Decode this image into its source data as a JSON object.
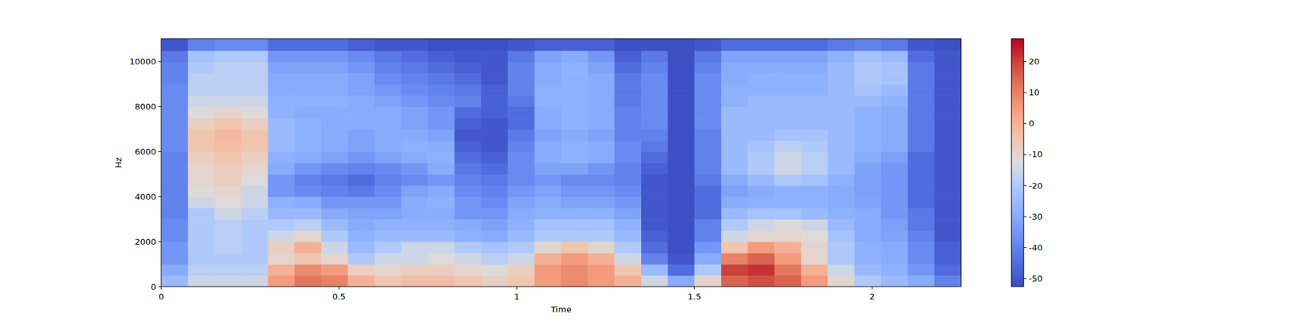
{
  "chart_data": {
    "type": "heatmap",
    "xlabel": "Time",
    "ylabel": "Hz",
    "xlim": [
      0,
      2.25
    ],
    "xticks": [
      0,
      0.5,
      1,
      1.5,
      2
    ],
    "ylim": [
      0,
      11025
    ],
    "yticks": [
      0,
      2000,
      4000,
      6000,
      8000,
      10000
    ],
    "x_edges": [
      0,
      0.075,
      0.15,
      0.225,
      0.3,
      0.375,
      0.45,
      0.525,
      0.6,
      0.675,
      0.75,
      0.825,
      0.9,
      0.975,
      1.05,
      1.125,
      1.2,
      1.275,
      1.35,
      1.425,
      1.5,
      1.575,
      1.65,
      1.725,
      1.8,
      1.875,
      1.95,
      2.025,
      2.1,
      2.175,
      2.25
    ],
    "y_edges": [
      0,
      500,
      1000,
      1500,
      2000,
      2500,
      3000,
      3500,
      4000,
      4500,
      5000,
      5500,
      6000,
      6500,
      7000,
      7500,
      8000,
      8500,
      9000,
      9500,
      10000,
      10500,
      11025
    ],
    "cells": [
      [
        -25,
        -15,
        -15,
        -15,
        5,
        12,
        10,
        0,
        -5,
        -3,
        -3,
        -5,
        -8,
        -5,
        5,
        8,
        5,
        0,
        -15,
        -30,
        -10,
        15,
        18,
        15,
        5,
        -10,
        -20,
        -25,
        -30,
        -40
      ],
      [
        -30,
        -18,
        -18,
        -18,
        0,
        8,
        5,
        -8,
        -10,
        -8,
        -8,
        -10,
        -12,
        -8,
        5,
        8,
        5,
        -5,
        -25,
        -45,
        -20,
        20,
        22,
        12,
        0,
        -15,
        -25,
        -28,
        -35,
        -45
      ],
      [
        -35,
        -20,
        -20,
        -20,
        -10,
        -5,
        -10,
        -20,
        -15,
        -15,
        -12,
        -15,
        -18,
        -15,
        0,
        5,
        0,
        -15,
        -40,
        -50,
        -30,
        10,
        15,
        5,
        -10,
        -20,
        -28,
        -30,
        -38,
        -48
      ],
      [
        -35,
        -20,
        -18,
        -20,
        -8,
        0,
        -15,
        -25,
        -20,
        -15,
        -15,
        -20,
        -22,
        -20,
        -10,
        -5,
        -10,
        -20,
        -45,
        -52,
        -35,
        -5,
        5,
        0,
        -10,
        -20,
        -28,
        -30,
        -38,
        -48
      ],
      [
        -38,
        -20,
        -18,
        -20,
        -15,
        -10,
        -20,
        -28,
        -25,
        -25,
        -25,
        -28,
        -30,
        -25,
        -20,
        -20,
        -20,
        -25,
        -48,
        -52,
        -40,
        -15,
        -10,
        -10,
        -12,
        -22,
        -30,
        -32,
        -40,
        -50
      ],
      [
        -38,
        -20,
        -18,
        -20,
        -20,
        -18,
        -25,
        -30,
        -28,
        -28,
        -28,
        -30,
        -32,
        -28,
        -22,
        -22,
        -22,
        -28,
        -50,
        -52,
        -40,
        -20,
        -15,
        -12,
        -15,
        -25,
        -30,
        -33,
        -42,
        -50
      ],
      [
        -40,
        -20,
        -15,
        -18,
        -25,
        -25,
        -30,
        -32,
        -32,
        -30,
        -30,
        -35,
        -35,
        -30,
        -28,
        -28,
        -28,
        -32,
        -50,
        -52,
        -45,
        -25,
        -22,
        -22,
        -25,
        -28,
        -30,
        -35,
        -42,
        -50
      ],
      [
        -40,
        -15,
        -12,
        -15,
        -28,
        -30,
        -35,
        -35,
        -35,
        -30,
        -28,
        -35,
        -38,
        -32,
        -30,
        -32,
        -32,
        -35,
        -50,
        -52,
        -45,
        -30,
        -28,
        -28,
        -28,
        -30,
        -32,
        -35,
        -45,
        -50
      ],
      [
        -40,
        -12,
        -10,
        -15,
        -35,
        -38,
        -40,
        -42,
        -38,
        -32,
        -30,
        -38,
        -40,
        -35,
        -32,
        -35,
        -35,
        -38,
        -50,
        -52,
        -45,
        -32,
        -30,
        -28,
        -28,
        -30,
        -33,
        -35,
        -45,
        -50
      ],
      [
        -40,
        -10,
        -8,
        -12,
        -35,
        -40,
        -42,
        -45,
        -40,
        -38,
        -35,
        -40,
        -42,
        -38,
        -35,
        -38,
        -38,
        -40,
        -50,
        -52,
        -42,
        -30,
        -25,
        -20,
        -22,
        -28,
        -33,
        -35,
        -45,
        -50
      ],
      [
        -40,
        -10,
        -8,
        -10,
        -30,
        -35,
        -38,
        -40,
        -38,
        -35,
        -30,
        -42,
        -45,
        -38,
        -32,
        -32,
        -35,
        -40,
        -48,
        -52,
        -40,
        -25,
        -20,
        -15,
        -18,
        -25,
        -32,
        -35,
        -45,
        -50
      ],
      [
        -40,
        -8,
        -5,
        -8,
        -28,
        -30,
        -32,
        -35,
        -32,
        -30,
        -28,
        -45,
        -48,
        -38,
        -30,
        -28,
        -30,
        -38,
        -45,
        -52,
        -40,
        -25,
        -20,
        -15,
        -18,
        -25,
        -30,
        -33,
        -45,
        -50
      ],
      [
        -38,
        -5,
        -3,
        -5,
        -25,
        -28,
        -30,
        -32,
        -30,
        -28,
        -30,
        -48,
        -50,
        -40,
        -30,
        -28,
        -30,
        -38,
        -42,
        -52,
        -40,
        -25,
        -22,
        -18,
        -20,
        -25,
        -28,
        -30,
        -42,
        -50
      ],
      [
        -38,
        -5,
        -2,
        -5,
        -25,
        -28,
        -30,
        -32,
        -30,
        -30,
        -32,
        -50,
        -50,
        -42,
        -32,
        -30,
        -32,
        -40,
        -40,
        -52,
        -40,
        -25,
        -25,
        -22,
        -22,
        -25,
        -28,
        -30,
        -42,
        -50
      ],
      [
        -38,
        -8,
        -5,
        -8,
        -25,
        -28,
        -30,
        -30,
        -30,
        -32,
        -35,
        -48,
        -50,
        -45,
        -30,
        -28,
        -30,
        -40,
        -38,
        -52,
        -38,
        -25,
        -25,
        -25,
        -25,
        -25,
        -28,
        -30,
        -42,
        -50
      ],
      [
        -38,
        -12,
        -10,
        -12,
        -28,
        -30,
        -30,
        -30,
        -30,
        -32,
        -35,
        -45,
        -48,
        -45,
        -30,
        -28,
        -30,
        -40,
        -38,
        -52,
        -38,
        -25,
        -25,
        -25,
        -25,
        -25,
        -28,
        -30,
        -42,
        -50
      ],
      [
        -38,
        -15,
        -15,
        -15,
        -28,
        -28,
        -28,
        -30,
        -32,
        -35,
        -38,
        -40,
        -48,
        -42,
        -28,
        -28,
        -30,
        -42,
        -38,
        -52,
        -38,
        -28,
        -25,
        -25,
        -25,
        -25,
        -25,
        -28,
        -42,
        -50
      ],
      [
        -38,
        -18,
        -18,
        -18,
        -30,
        -30,
        -30,
        -32,
        -35,
        -38,
        -40,
        -42,
        -48,
        -40,
        -28,
        -28,
        -30,
        -42,
        -38,
        -52,
        -38,
        -28,
        -28,
        -28,
        -28,
        -25,
        -22,
        -25,
        -42,
        -50
      ],
      [
        -40,
        -18,
        -18,
        -18,
        -30,
        -30,
        -30,
        -32,
        -38,
        -40,
        -42,
        -45,
        -50,
        -40,
        -30,
        -28,
        -30,
        -42,
        -38,
        -52,
        -38,
        -30,
        -28,
        -28,
        -28,
        -25,
        -20,
        -22,
        -42,
        -50
      ],
      [
        -40,
        -20,
        -18,
        -18,
        -32,
        -32,
        -32,
        -35,
        -40,
        -42,
        -45,
        -48,
        -50,
        -40,
        -30,
        -28,
        -32,
        -45,
        -40,
        -52,
        -40,
        -30,
        -30,
        -30,
        -30,
        -25,
        -20,
        -22,
        -42,
        -50
      ],
      [
        -42,
        -22,
        -20,
        -20,
        -35,
        -35,
        -35,
        -38,
        -42,
        -45,
        -48,
        -50,
        -50,
        -42,
        -32,
        -30,
        -35,
        -48,
        -42,
        -52,
        -42,
        -32,
        -32,
        -32,
        -32,
        -28,
        -22,
        -25,
        -45,
        -50
      ],
      [
        -50,
        -40,
        -38,
        -38,
        -45,
        -45,
        -45,
        -48,
        -50,
        -50,
        -52,
        -52,
        -52,
        -50,
        -48,
        -48,
        -48,
        -52,
        -52,
        -52,
        -50,
        -45,
        -45,
        -45,
        -45,
        -42,
        -40,
        -42,
        -50,
        -52
      ]
    ],
    "colorbar": {
      "range": [
        -52.6,
        27.4
      ],
      "ticks": [
        20,
        10,
        0,
        -10,
        -20,
        -30,
        -40,
        -50
      ]
    }
  }
}
